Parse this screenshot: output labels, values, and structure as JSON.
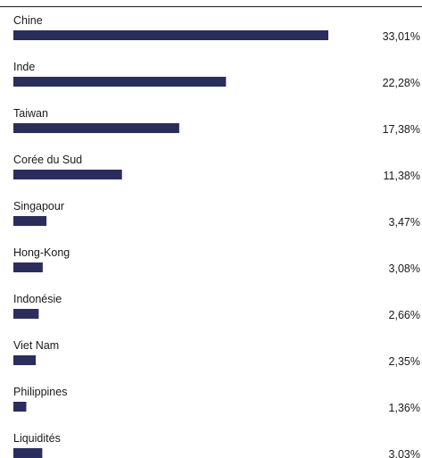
{
  "chart_data": {
    "type": "bar",
    "orientation": "horizontal",
    "categories": [
      "Chine",
      "Inde",
      "Taiwan",
      "Corée du Sud",
      "Singapour",
      "Hong-Kong",
      "Indonésie",
      "Viet Nam",
      "Philippines",
      "Liquidités"
    ],
    "values": [
      33.01,
      22.28,
      17.38,
      11.38,
      3.47,
      3.08,
      2.66,
      2.35,
      1.36,
      3.03
    ],
    "value_labels": [
      "33,01%",
      "22,28%",
      "17,38%",
      "11,38%",
      "3,47%",
      "3,08%",
      "2,66%",
      "2,35%",
      "1,36%",
      "3,03%"
    ],
    "title": "",
    "xlabel": "",
    "ylabel": "",
    "grid": false,
    "legend": "none",
    "bar_color": "#2b2d5c",
    "rule_color": "#1a1a1a"
  }
}
